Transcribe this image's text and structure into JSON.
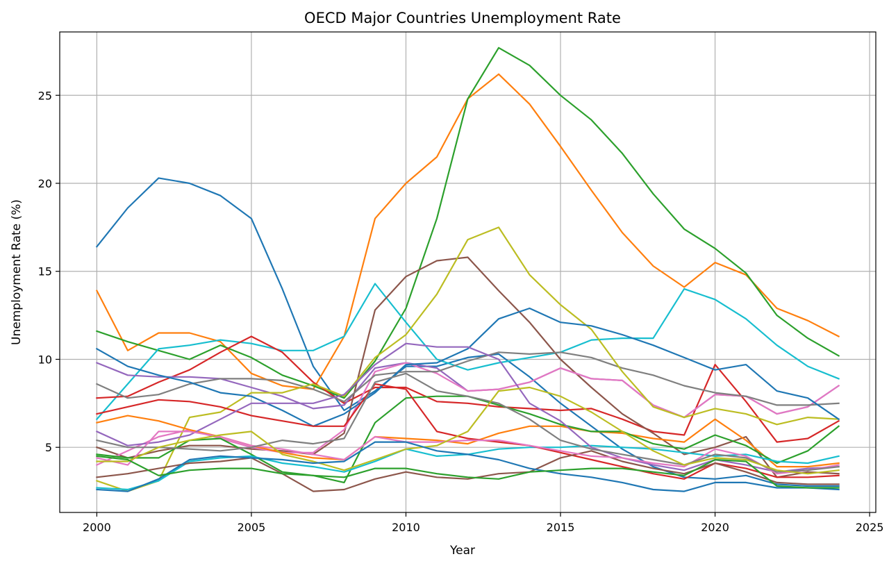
{
  "chart_data": {
    "type": "line",
    "title": "OECD Major Countries Unemployment Rate",
    "xlabel": "Year",
    "ylabel": "Unemployment Rate (%)",
    "xlim": [
      1998.8,
      2025.2
    ],
    "ylim": [
      1.3,
      28.6
    ],
    "xticks": [
      2000,
      2005,
      2010,
      2015,
      2020,
      2025
    ],
    "yticks": [
      5,
      10,
      15,
      20,
      25
    ],
    "grid": true,
    "legend": "none",
    "x": [
      2000,
      2001,
      2002,
      2003,
      2004,
      2005,
      2006,
      2007,
      2008,
      2009,
      2010,
      2011,
      2012,
      2013,
      2014,
      2015,
      2016,
      2017,
      2018,
      2019,
      2020,
      2021,
      2022,
      2023,
      2024
    ],
    "series": [
      {
        "color": "#1f77b4",
        "values": [
          16.4,
          18.6,
          20.3,
          20.0,
          19.3,
          18.0,
          14.0,
          9.6,
          7.1,
          8.2,
          9.6,
          9.6,
          10.1,
          10.3,
          9.0,
          7.5,
          6.2,
          4.9,
          3.9,
          3.3,
          3.2,
          3.4,
          2.9,
          2.8,
          2.8
        ]
      },
      {
        "color": "#ff7f0e",
        "values": [
          13.9,
          10.5,
          11.5,
          11.5,
          11.0,
          9.2,
          8.5,
          8.3,
          11.3,
          18.0,
          20.0,
          21.5,
          24.8,
          26.2,
          24.5,
          22.1,
          19.6,
          17.2,
          15.3,
          14.1,
          15.5,
          14.8,
          12.9,
          12.2,
          11.3
        ]
      },
      {
        "color": "#2ca02c",
        "values": [
          11.6,
          11.0,
          10.5,
          10.0,
          10.8,
          10.1,
          9.1,
          8.5,
          7.8,
          9.9,
          12.9,
          18.0,
          24.8,
          27.7,
          26.7,
          25.0,
          23.6,
          21.7,
          19.4,
          17.4,
          16.3,
          14.9,
          12.5,
          11.2,
          10.2
        ]
      },
      {
        "color": "#17becf",
        "values": [
          6.6,
          8.6,
          10.6,
          10.8,
          11.1,
          10.9,
          10.5,
          10.5,
          11.3,
          14.3,
          12.1,
          10.0,
          9.4,
          9.8,
          10.1,
          10.4,
          11.1,
          11.2,
          11.2,
          14.0,
          13.4,
          12.3,
          10.8,
          9.6,
          8.9
        ]
      },
      {
        "color": "#d62728",
        "values": [
          7.8,
          7.9,
          8.7,
          9.4,
          10.4,
          11.3,
          10.4,
          8.7,
          7.5,
          8.4,
          8.4,
          7.6,
          7.5,
          7.3,
          7.2,
          7.1,
          7.2,
          6.6,
          5.9,
          5.7,
          9.7,
          7.6,
          5.3,
          5.5,
          6.5
        ]
      },
      {
        "color": "#9467bd",
        "values": [
          9.8,
          9.1,
          9.0,
          9.0,
          8.9,
          8.4,
          7.9,
          7.2,
          7.4,
          9.5,
          9.8,
          9.5,
          8.2,
          8.3,
          8.7,
          9.5,
          8.9,
          8.8,
          7.4,
          6.7,
          8.0,
          7.9,
          6.9,
          7.3,
          8.5
        ]
      },
      {
        "color": "#8c564b",
        "values": [
          5.0,
          4.4,
          4.8,
          5.1,
          5.1,
          4.9,
          4.8,
          4.6,
          5.8,
          12.8,
          14.7,
          15.6,
          15.8,
          13.9,
          12.1,
          10.0,
          8.4,
          6.9,
          5.8,
          4.6,
          5.0,
          5.6,
          3.3,
          3.6,
          3.5
        ]
      },
      {
        "color": "#e377c2",
        "values": [
          4.0,
          4.8,
          5.6,
          6.0,
          5.5,
          5.0,
          4.7,
          4.7,
          6.0,
          9.3,
          9.8,
          9.2,
          8.2,
          8.3,
          8.7,
          9.5,
          8.9,
          8.8,
          7.4,
          6.7,
          8.0,
          7.9,
          6.9,
          7.3,
          8.5
        ]
      },
      {
        "color": "#7f7f7f",
        "values": [
          8.6,
          7.8,
          8.0,
          8.6,
          8.9,
          8.9,
          8.8,
          8.3,
          7.6,
          9.1,
          9.3,
          9.3,
          9.9,
          10.4,
          10.3,
          10.4,
          10.1,
          9.5,
          9.1,
          8.5,
          8.1,
          7.9,
          7.4,
          7.4,
          7.5
        ]
      },
      {
        "color": "#bcbd22",
        "values": [
          3.1,
          2.5,
          3.1,
          6.7,
          7.0,
          8.1,
          8.1,
          8.6,
          7.9,
          10.1,
          11.4,
          13.7,
          16.8,
          17.5,
          14.8,
          13.1,
          11.7,
          9.3,
          7.3,
          6.7,
          7.2,
          6.9,
          6.3,
          6.7,
          6.6
        ]
      },
      {
        "color": "#1f77b4",
        "values": [
          10.6,
          9.6,
          9.1,
          8.7,
          8.1,
          7.9,
          7.1,
          6.2,
          6.9,
          8.1,
          9.7,
          9.8,
          10.6,
          12.3,
          12.9,
          12.1,
          11.9,
          11.4,
          10.8,
          10.1,
          9.4,
          9.7,
          8.2,
          7.8,
          6.6
        ]
      },
      {
        "color": "#ff7f0e",
        "values": [
          6.4,
          6.8,
          6.5,
          6.0,
          5.6,
          5.1,
          4.7,
          4.4,
          4.3,
          5.6,
          5.5,
          5.4,
          5.2,
          5.8,
          6.2,
          6.2,
          5.9,
          5.8,
          5.5,
          5.3,
          6.6,
          5.4,
          3.9,
          3.9,
          4.1
        ]
      },
      {
        "color": "#2ca02c",
        "values": [
          4.6,
          4.4,
          4.4,
          5.4,
          5.5,
          4.6,
          3.6,
          3.4,
          3.0,
          6.4,
          7.8,
          7.9,
          7.9,
          7.4,
          6.9,
          6.3,
          5.9,
          5.9,
          5.2,
          4.9,
          5.7,
          5.1,
          4.1,
          4.8,
          6.2
        ]
      },
      {
        "color": "#17becf",
        "values": [
          2.7,
          2.6,
          3.1,
          4.2,
          4.4,
          4.5,
          4.1,
          3.9,
          3.6,
          4.2,
          4.9,
          4.5,
          4.6,
          4.9,
          5.0,
          5.0,
          5.1,
          5.0,
          4.9,
          4.7,
          4.5,
          4.6,
          4.2,
          4.1,
          4.5
        ]
      },
      {
        "color": "#d62728",
        "values": [
          6.9,
          7.3,
          7.7,
          7.6,
          7.3,
          6.8,
          6.5,
          6.2,
          6.2,
          8.6,
          8.3,
          5.9,
          5.5,
          5.3,
          5.1,
          4.7,
          4.3,
          3.9,
          3.5,
          3.2,
          4.1,
          3.8,
          3.3,
          3.3,
          3.4
        ]
      },
      {
        "color": "#9467bd",
        "values": [
          5.9,
          5.1,
          5.3,
          5.7,
          6.6,
          7.5,
          7.5,
          7.5,
          8.0,
          9.7,
          10.9,
          10.7,
          10.7,
          10.0,
          7.5,
          6.5,
          5.0,
          4.4,
          4.0,
          3.7,
          4.3,
          4.0,
          3.6,
          3.8,
          3.9
        ]
      },
      {
        "color": "#8c564b",
        "values": [
          3.3,
          3.5,
          3.8,
          4.1,
          4.2,
          4.4,
          3.5,
          2.5,
          2.6,
          3.2,
          3.6,
          3.3,
          3.2,
          3.5,
          3.6,
          4.4,
          4.8,
          4.2,
          3.8,
          3.5,
          4.1,
          3.6,
          3.0,
          2.9,
          2.9
        ]
      },
      {
        "color": "#e377c2",
        "values": [
          4.4,
          4.0,
          5.9,
          5.9,
          5.6,
          5.1,
          4.9,
          4.6,
          4.3,
          5.6,
          5.3,
          5.3,
          5.4,
          5.4,
          5.1,
          4.8,
          4.5,
          4.4,
          4.1,
          3.9,
          4.9,
          4.5,
          3.5,
          3.7,
          4.0
        ]
      },
      {
        "color": "#7f7f7f",
        "values": [
          5.4,
          5.0,
          5.0,
          4.9,
          4.8,
          5.0,
          5.4,
          5.2,
          5.5,
          8.7,
          9.2,
          8.2,
          7.9,
          7.5,
          6.6,
          5.4,
          4.9,
          4.6,
          4.3,
          4.0,
          4.6,
          4.4,
          3.6,
          3.7,
          3.9
        ]
      },
      {
        "color": "#bcbd22",
        "values": [
          4.2,
          4.2,
          5.0,
          5.4,
          5.7,
          5.9,
          4.6,
          4.2,
          3.7,
          4.3,
          4.9,
          5.1,
          5.9,
          8.2,
          8.4,
          7.9,
          7.0,
          5.9,
          4.8,
          4.0,
          4.4,
          4.3,
          3.7,
          3.5,
          3.7
        ]
      },
      {
        "color": "#1f77b4",
        "values": [
          2.6,
          2.5,
          3.2,
          4.3,
          4.5,
          4.4,
          4.3,
          4.1,
          4.2,
          5.3,
          5.3,
          4.8,
          4.6,
          4.3,
          3.8,
          3.5,
          3.3,
          3.0,
          2.6,
          2.5,
          3.0,
          3.0,
          2.7,
          2.7,
          2.6
        ]
      },
      {
        "color": "#2ca02c",
        "values": [
          4.5,
          4.3,
          3.4,
          3.7,
          3.8,
          3.8,
          3.5,
          3.4,
          3.3,
          3.8,
          3.8,
          3.5,
          3.3,
          3.2,
          3.6,
          3.7,
          3.8,
          3.8,
          3.6,
          3.4,
          4.3,
          4.2,
          2.8,
          2.7,
          2.7
        ]
      }
    ]
  }
}
